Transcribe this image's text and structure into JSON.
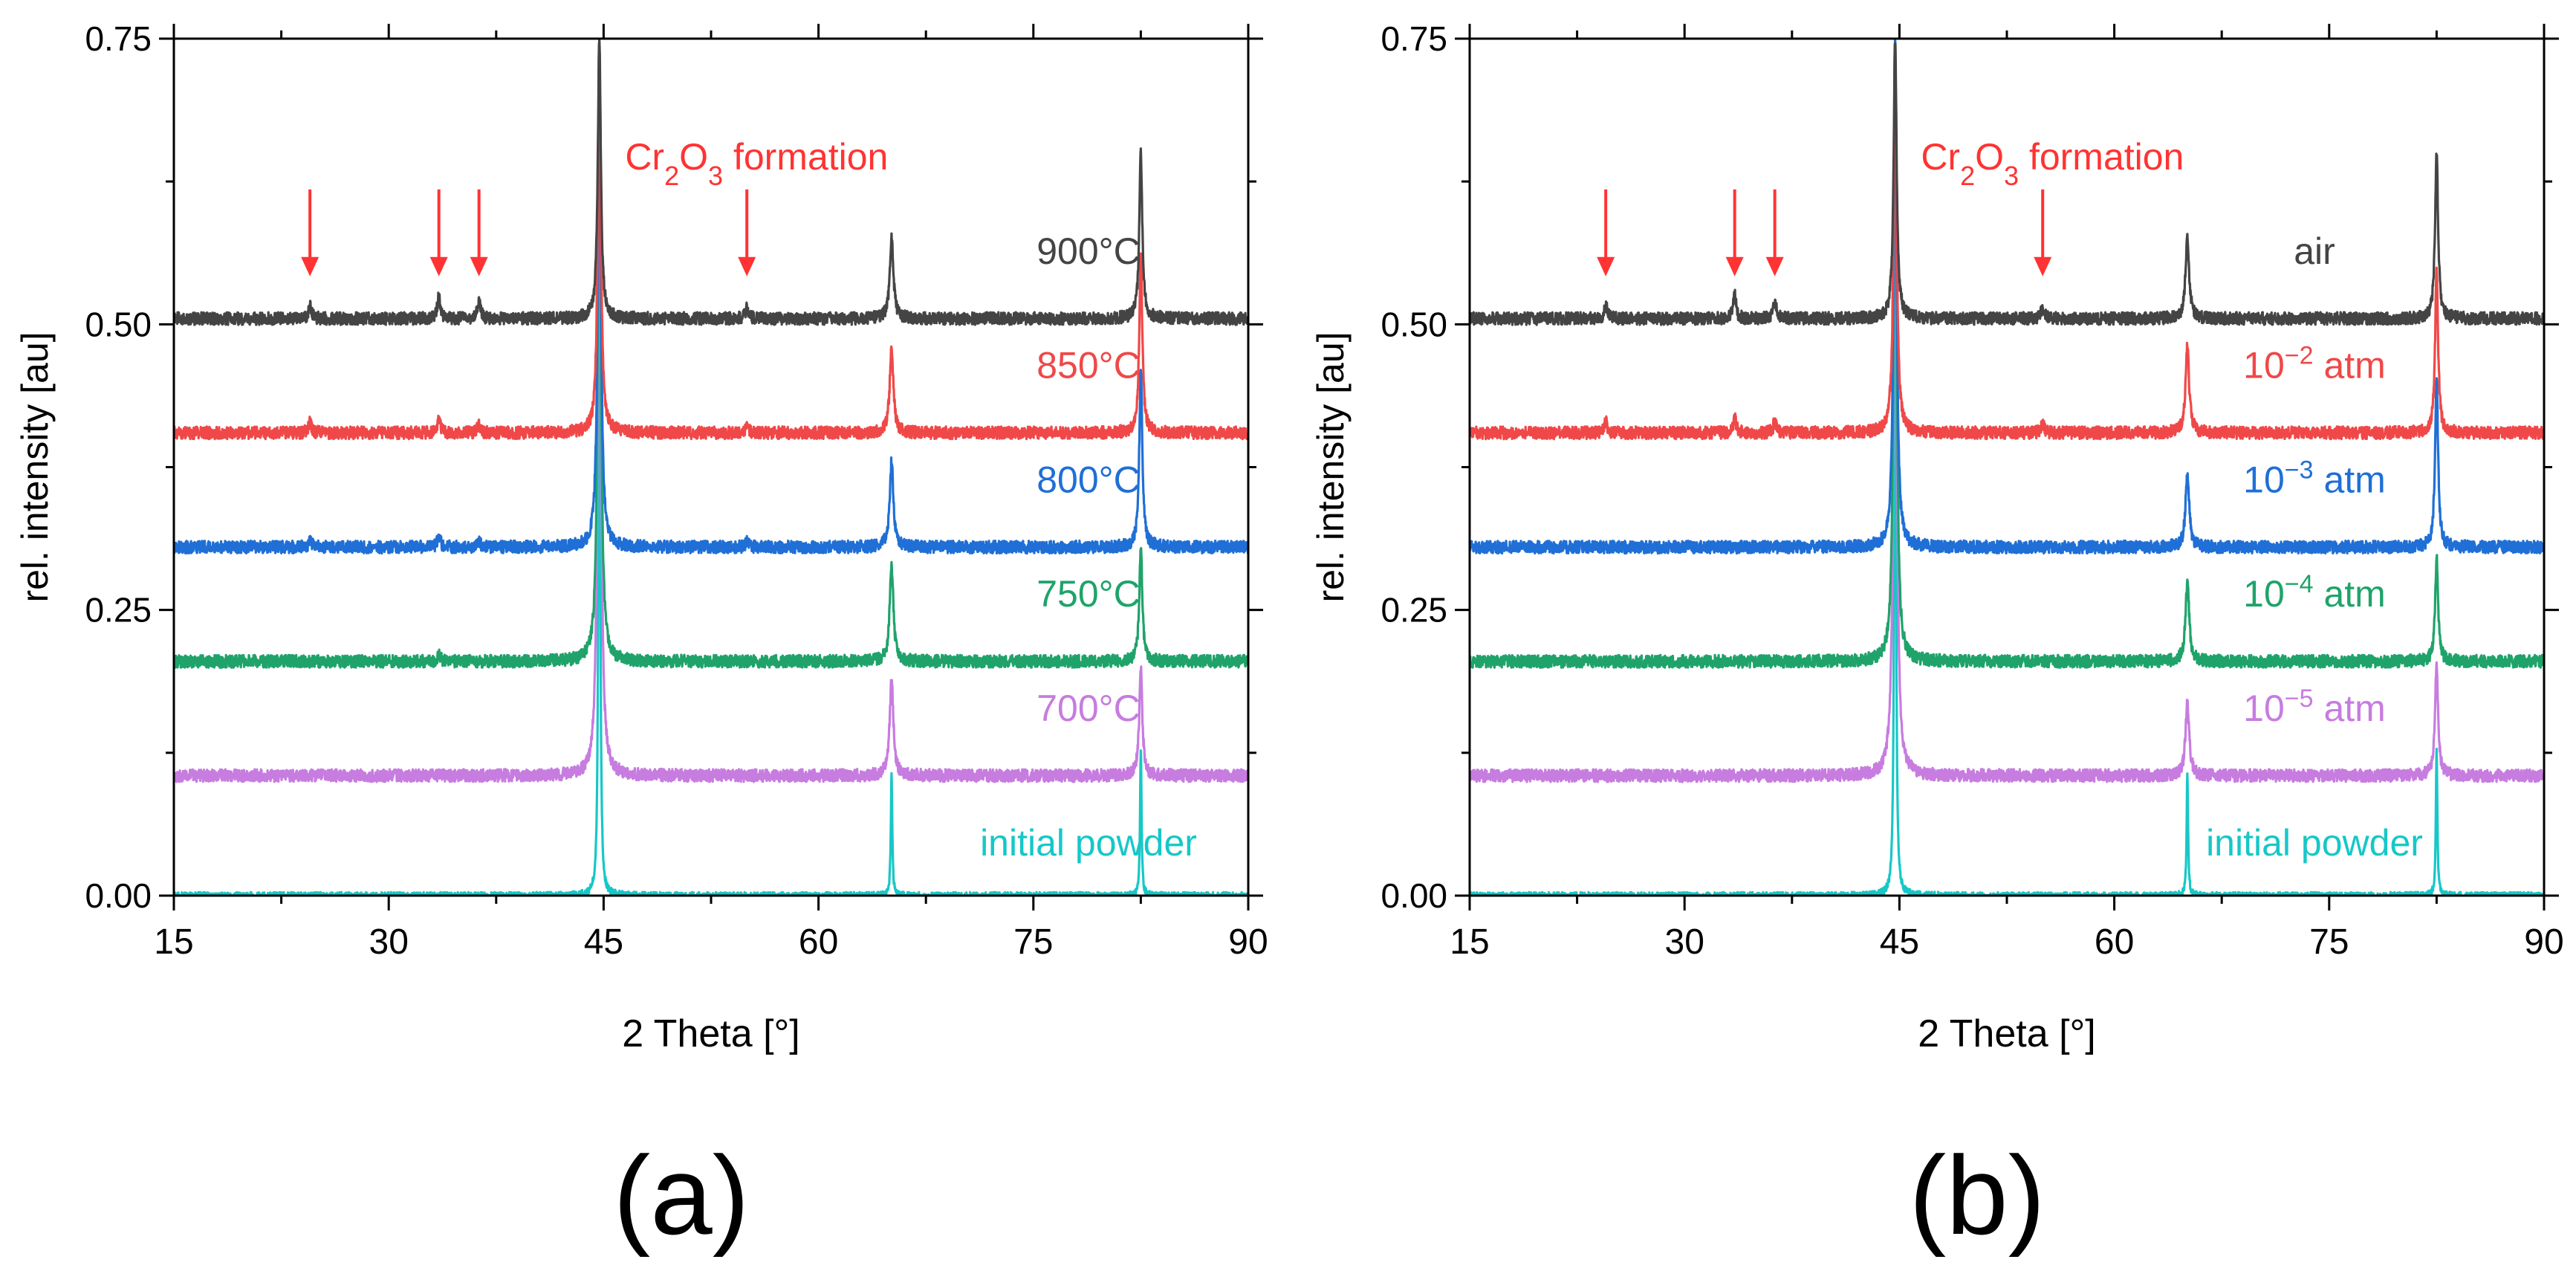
{
  "figure": {
    "description_labels": [
      "(a)",
      "(b)"
    ]
  },
  "chart_data": [
    {
      "type": "line",
      "panel_label": "(a)",
      "xlabel": "2 Theta [°]",
      "ylabel": "rel. intensity [au]",
      "xlim": [
        15,
        90
      ],
      "ylim": [
        0,
        0.75
      ],
      "xticks": [
        15,
        30,
        45,
        60,
        75,
        90
      ],
      "xtick_labels": [
        "15",
        "30",
        "45",
        "60",
        "75",
        "90"
      ],
      "yticks": [
        0,
        0.25,
        0.5,
        0.75
      ],
      "ytick_labels": [
        "0.00",
        "0.25",
        "0.50",
        "0.75"
      ],
      "annotation": {
        "prefix": "Cr",
        "sub1": "2",
        "mid": "O",
        "sub2": "3",
        "suffix": " formation",
        "color": "#ff3333"
      },
      "arrows_x": [
        24.5,
        33.5,
        36.3,
        55
      ],
      "peak_positions": [
        24.5,
        33.5,
        36.3,
        44.7,
        55,
        65.1,
        82.5
      ],
      "series": [
        {
          "name": "initial powder",
          "label_parts": [
            {
              "t": "initial powder"
            }
          ],
          "color": "#17c7c7",
          "baseline": 0.0,
          "peaks": [
            [
              44.7,
              0.75,
              0.12
            ],
            [
              65.1,
              0.105,
              0.12
            ],
            [
              82.5,
              0.13,
              0.12
            ]
          ]
        },
        {
          "name": "700°C",
          "label_parts": [
            {
              "t": "700°C"
            }
          ],
          "color": "#c77ce0",
          "baseline": 0.105,
          "peaks": [
            [
              44.7,
              0.64,
              0.25
            ],
            [
              65.1,
              0.085,
              0.3
            ],
            [
              82.5,
              0.095,
              0.25
            ]
          ]
        },
        {
          "name": "750°C",
          "label_parts": [
            {
              "t": "750°C"
            }
          ],
          "color": "#1fa36a",
          "baseline": 0.205,
          "peaks": [
            [
              33.5,
              0.006,
              0.25
            ],
            [
              44.7,
              0.54,
              0.25
            ],
            [
              65.1,
              0.085,
              0.3
            ],
            [
              82.5,
              0.1,
              0.25
            ]
          ]
        },
        {
          "name": "800°C",
          "label_parts": [
            {
              "t": "800°C"
            }
          ],
          "color": "#1f6fd6",
          "baseline": 0.305,
          "peaks": [
            [
              24.5,
              0.006,
              0.25
            ],
            [
              33.5,
              0.01,
              0.25
            ],
            [
              36.3,
              0.005,
              0.25
            ],
            [
              44.7,
              0.44,
              0.25
            ],
            [
              55,
              0.005,
              0.25
            ],
            [
              65.1,
              0.075,
              0.3
            ],
            [
              82.5,
              0.155,
              0.25
            ]
          ]
        },
        {
          "name": "850°C",
          "label_parts": [
            {
              "t": "850°C"
            }
          ],
          "color": "#f04848",
          "baseline": 0.405,
          "peaks": [
            [
              24.5,
              0.01,
              0.25
            ],
            [
              33.5,
              0.013,
              0.25
            ],
            [
              36.3,
              0.007,
              0.25
            ],
            [
              44.7,
              0.34,
              0.25
            ],
            [
              55,
              0.006,
              0.25
            ],
            [
              65.1,
              0.075,
              0.3
            ],
            [
              82.5,
              0.155,
              0.25
            ]
          ]
        },
        {
          "name": "900°C",
          "label_parts": [
            {
              "t": "900°C"
            }
          ],
          "color": "#444444",
          "baseline": 0.505,
          "peaks": [
            [
              24.5,
              0.012,
              0.25
            ],
            [
              33.5,
              0.02,
              0.25
            ],
            [
              36.3,
              0.016,
              0.25
            ],
            [
              44.7,
              0.245,
              0.25
            ],
            [
              55,
              0.01,
              0.25
            ],
            [
              65.1,
              0.07,
              0.3
            ],
            [
              82.5,
              0.145,
              0.25
            ]
          ]
        }
      ]
    },
    {
      "type": "line",
      "panel_label": "(b)",
      "xlabel": "2 Theta [°]",
      "ylabel": "rel. intensity [au]",
      "xlim": [
        15,
        90
      ],
      "ylim": [
        0,
        0.75
      ],
      "xticks": [
        15,
        30,
        45,
        60,
        75,
        90
      ],
      "xtick_labels": [
        "15",
        "30",
        "45",
        "60",
        "75",
        "90"
      ],
      "yticks": [
        0,
        0.25,
        0.5,
        0.75
      ],
      "ytick_labels": [
        "0.00",
        "0.25",
        "0.50",
        "0.75"
      ],
      "annotation": {
        "prefix": "Cr",
        "sub1": "2",
        "mid": "O",
        "sub2": "3",
        "suffix": " formation",
        "color": "#ff3333"
      },
      "arrows_x": [
        24.5,
        33.5,
        36.3,
        55
      ],
      "peak_positions": [
        24.5,
        33.5,
        36.3,
        44.7,
        55,
        65.1,
        82.5
      ],
      "series": [
        {
          "name": "initial powder",
          "label_parts": [
            {
              "t": "initial powder"
            }
          ],
          "color": "#17c7c7",
          "baseline": 0.0,
          "peaks": [
            [
              44.7,
              0.75,
              0.12
            ],
            [
              65.1,
              0.105,
              0.12
            ],
            [
              82.5,
              0.13,
              0.12
            ]
          ]
        },
        {
          "name": "10−5 atm",
          "label_parts": [
            {
              "t": "10"
            },
            {
              "t": "−5",
              "sup": true
            },
            {
              "t": " atm"
            }
          ],
          "color": "#c77ce0",
          "baseline": 0.105,
          "peaks": [
            [
              44.7,
              0.64,
              0.25
            ],
            [
              65.1,
              0.065,
              0.3
            ],
            [
              82.5,
              0.1,
              0.25
            ]
          ]
        },
        {
          "name": "10−4 atm",
          "label_parts": [
            {
              "t": "10"
            },
            {
              "t": "−4",
              "sup": true
            },
            {
              "t": " atm"
            }
          ],
          "color": "#1fa36a",
          "baseline": 0.205,
          "peaks": [
            [
              44.7,
              0.54,
              0.25
            ],
            [
              65.1,
              0.07,
              0.3
            ],
            [
              82.5,
              0.09,
              0.25
            ]
          ]
        },
        {
          "name": "10−3 atm",
          "label_parts": [
            {
              "t": "10"
            },
            {
              "t": "−3",
              "sup": true
            },
            {
              "t": " atm"
            }
          ],
          "color": "#1f6fd6",
          "baseline": 0.305,
          "peaks": [
            [
              44.7,
              0.44,
              0.25
            ],
            [
              65.1,
              0.065,
              0.3
            ],
            [
              82.5,
              0.145,
              0.25
            ]
          ]
        },
        {
          "name": "10−2 atm",
          "label_parts": [
            {
              "t": "10"
            },
            {
              "t": "−2",
              "sup": true
            },
            {
              "t": " atm"
            }
          ],
          "color": "#f04848",
          "baseline": 0.405,
          "peaks": [
            [
              24.5,
              0.01,
              0.25
            ],
            [
              33.5,
              0.013,
              0.25
            ],
            [
              36.3,
              0.01,
              0.25
            ],
            [
              44.7,
              0.34,
              0.25
            ],
            [
              55,
              0.008,
              0.25
            ],
            [
              65.1,
              0.075,
              0.3
            ],
            [
              82.5,
              0.14,
              0.25
            ]
          ]
        },
        {
          "name": "air",
          "label_parts": [
            {
              "t": "air"
            }
          ],
          "color": "#444444",
          "baseline": 0.505,
          "peaks": [
            [
              24.5,
              0.012,
              0.25
            ],
            [
              33.5,
              0.02,
              0.25
            ],
            [
              36.3,
              0.016,
              0.25
            ],
            [
              44.7,
              0.245,
              0.25
            ],
            [
              55,
              0.01,
              0.25
            ],
            [
              65.1,
              0.07,
              0.3
            ],
            [
              82.5,
              0.145,
              0.25
            ]
          ]
        }
      ]
    }
  ]
}
